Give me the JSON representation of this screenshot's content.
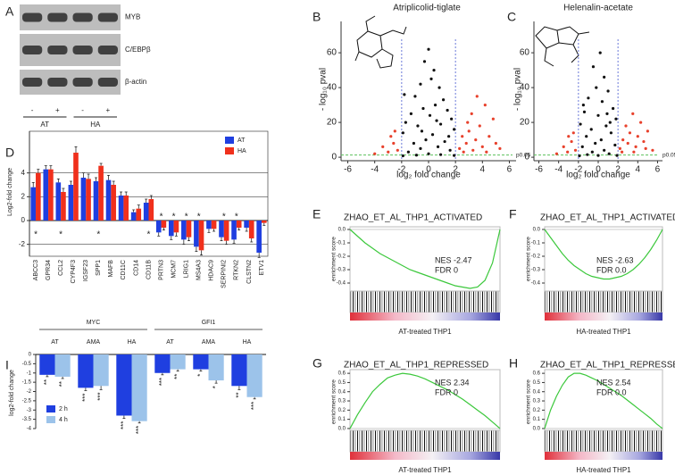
{
  "blot": {
    "panel": "A",
    "bands": [
      "MYB",
      "C/EBPβ",
      "β-actin"
    ],
    "lanes": [
      "-",
      "+",
      "-",
      "+"
    ],
    "groups": [
      "AT",
      "HA"
    ]
  },
  "chart_data": [
    {
      "type": "scatter",
      "panel": "B",
      "title": "Atriplicolid-tiglate",
      "x_label": "log₂ fold change",
      "y_label": "- log₁₀ pval",
      "xlim": [
        -6.5,
        6.5
      ],
      "ylim": [
        -2,
        78
      ],
      "xticks": [
        -6,
        -4,
        -2,
        0,
        2,
        4,
        6
      ],
      "yticks": [
        0,
        20,
        40,
        60
      ],
      "vlines": [
        -2,
        2
      ],
      "hline": 1.3,
      "hline_label": "p0.05",
      "series": [
        {
          "color": "#111111",
          "x": [
            0,
            -0.3,
            0.4,
            0.2,
            -0.6,
            0.8,
            -1,
            1.1,
            0.5,
            -0.4,
            1.4,
            -1.3,
            0.1,
            1.7,
            -1.7,
            0.9,
            -0.8,
            1.9,
            -1.9,
            0.3,
            -0.2,
            1.2,
            -1.1,
            0.7,
            -0.6,
            1.6,
            -1.5,
            0,
            0.9,
            -0.9,
            1.9,
            -1.9,
            -1.8,
            1.5,
            -0.5,
            0.6
          ],
          "values": [
            62,
            55,
            50,
            45,
            42,
            40,
            35,
            33,
            30,
            28,
            27,
            25,
            24,
            22,
            20,
            19,
            18,
            16,
            14,
            13,
            10,
            9,
            8,
            6,
            5,
            4,
            3,
            2,
            1.5,
            1.2,
            1,
            0.8,
            36,
            12,
            15,
            21
          ]
        },
        {
          "color": "#e8412c",
          "x": [
            2.3,
            2.5,
            2.8,
            3,
            3.2,
            3.5,
            3.8,
            4,
            4.2,
            4.5,
            4.8,
            5,
            2.6,
            3.3,
            4.3,
            5.3,
            2.9,
            3.6,
            -2.3,
            -2.6,
            -3,
            -3.4,
            -2.8,
            -4,
            -2.5
          ],
          "values": [
            5,
            12,
            8,
            15,
            25,
            10,
            18,
            6,
            30,
            12,
            22,
            8,
            3,
            4,
            3,
            5,
            20,
            35,
            4,
            8,
            3,
            6,
            12,
            2,
            15
          ]
        }
      ]
    },
    {
      "type": "scatter",
      "panel": "C",
      "title": "Helenalin-acetate",
      "x_label": "log₂ fold change",
      "y_label": "- log₁₀ pval",
      "xlim": [
        -6.5,
        6.5
      ],
      "ylim": [
        -2,
        78
      ],
      "xticks": [
        -6,
        -4,
        -2,
        0,
        2,
        4,
        6
      ],
      "yticks": [
        0,
        20,
        40,
        60
      ],
      "vlines": [
        -2,
        2
      ],
      "hline": 1.3,
      "hline_label": "p0.05",
      "series": [
        {
          "color": "#111111",
          "x": [
            0.2,
            -0.5,
            0.6,
            -0.2,
            1,
            -1,
            0.4,
            1.5,
            -1.4,
            0,
            1.8,
            -1.8,
            0.8,
            -0.7,
            1.3,
            -1.2,
            0.3,
            -0.3,
            1.7,
            -1.6,
            0.6,
            -0.6,
            1.1,
            -1.1,
            1.9,
            -1.9,
            0,
            -1.5,
            1.2,
            0.9
          ],
          "values": [
            60,
            52,
            46,
            40,
            38,
            34,
            32,
            28,
            26,
            24,
            22,
            19,
            18,
            16,
            14,
            12,
            10,
            8,
            7,
            6,
            4,
            3,
            2,
            1.5,
            1,
            0.8,
            1,
            30,
            20,
            25
          ]
        },
        {
          "color": "#e8412c",
          "x": [
            2.2,
            2.5,
            2.8,
            3,
            3.2,
            3.5,
            3.8,
            4,
            4.3,
            4.6,
            5,
            5.5,
            2.4,
            3.6,
            4.8,
            -2.3,
            -2.7,
            -3.1,
            -3.5,
            -2.5,
            -4.2,
            -3
          ],
          "values": [
            5,
            10,
            18,
            8,
            14,
            25,
            6,
            12,
            20,
            9,
            15,
            4,
            3,
            3,
            5,
            4,
            9,
            3,
            6,
            14,
            2,
            12
          ]
        }
      ]
    },
    {
      "type": "bar",
      "panel": "D",
      "y_label": "Log2-fold change",
      "ylim": [
        -3,
        7.5
      ],
      "yticks": [
        -2,
        0,
        2,
        4
      ],
      "grid": true,
      "legend": "upper right",
      "categories": [
        "ABCC3",
        "GPR34",
        "CCL2",
        "CYP4F3",
        "IGSF23",
        "SPP1",
        "MAFB",
        "CD11C",
        "CD14",
        "CD11B",
        "PRTN3",
        "MCM7",
        "LRIG1",
        "MS4A3",
        "HDAC9",
        "SERPINI2",
        "RTKN2",
        "CLSTN2",
        "ETV1"
      ],
      "markers": [
        "*",
        null,
        "*",
        null,
        null,
        "*",
        null,
        null,
        null,
        "*",
        "*",
        "*",
        "*",
        "*",
        null,
        "*",
        "*",
        null,
        null
      ],
      "series": [
        {
          "name": "AT",
          "color": "#1f3fe0",
          "values": [
            2.8,
            4.3,
            3.2,
            3.0,
            3.6,
            3.3,
            3.4,
            2.1,
            0.7,
            1.5,
            -1.0,
            -1.3,
            -1.6,
            -2.2,
            -0.7,
            -1.4,
            -1.6,
            -0.6,
            -2.7
          ],
          "errors": [
            0.4,
            0.3,
            0.3,
            0.3,
            0.4,
            0.3,
            0.4,
            0.3,
            0.2,
            0.3,
            0.3,
            0.3,
            0.4,
            0.4,
            0.3,
            0.3,
            0.3,
            0.3,
            0.4
          ]
        },
        {
          "name": "HA",
          "color": "#f0301c",
          "values": [
            4.0,
            4.3,
            2.4,
            5.7,
            3.5,
            4.6,
            3.0,
            2.1,
            1.0,
            1.8,
            -0.6,
            -1.0,
            -1.4,
            -2.5,
            -0.7,
            -1.7,
            -0.6,
            -1.5,
            -0.2
          ],
          "errors": [
            0.3,
            0.3,
            0.3,
            0.5,
            0.4,
            0.2,
            0.3,
            0.3,
            0.3,
            0.3,
            0.2,
            0.3,
            0.3,
            0.4,
            0.2,
            0.3,
            0.2,
            0.3,
            0.2
          ]
        }
      ]
    },
    {
      "type": "line",
      "panel": "E",
      "title": "ZHAO_ET_AL_THP1_ACTIVATED",
      "y_label": "enrichment score",
      "x_label": "AT-treated THP1",
      "annotations": [
        "NES -2.47",
        "FDR 0"
      ],
      "xlim": [
        0,
        100
      ],
      "ylim": [
        -0.46,
        0.02
      ],
      "yticks": [
        {
          "value": 0,
          "label": "0.0"
        },
        -0.1,
        -0.2,
        -0.3,
        -0.4
      ],
      "x": [
        0,
        5,
        10,
        15,
        20,
        25,
        30,
        35,
        40,
        45,
        50,
        55,
        60,
        65,
        70,
        75,
        80,
        85,
        90,
        95,
        100
      ],
      "series": [
        {
          "color": "#3cc83c",
          "values": [
            0,
            -0.05,
            -0.1,
            -0.14,
            -0.18,
            -0.21,
            -0.24,
            -0.27,
            -0.3,
            -0.32,
            -0.34,
            -0.36,
            -0.38,
            -0.4,
            -0.42,
            -0.43,
            -0.44,
            -0.43,
            -0.38,
            -0.25,
            0
          ]
        }
      ]
    },
    {
      "type": "line",
      "panel": "F",
      "title": "ZHAO_ET_AL_THP1_ACTIVATED",
      "y_label": "enrichment score",
      "x_label": "HA-treated THP1",
      "annotations": [
        "NES -2.63",
        "FDR 0.0"
      ],
      "xlim": [
        0,
        100
      ],
      "ylim": [
        -0.46,
        0.02
      ],
      "yticks": [
        {
          "value": 0,
          "label": "0.0"
        },
        -0.1,
        -0.2,
        -0.3,
        -0.4
      ],
      "x": [
        0,
        5,
        10,
        15,
        20,
        25,
        30,
        35,
        40,
        45,
        50,
        55,
        60,
        65,
        70,
        75,
        80,
        85,
        90,
        95,
        100
      ],
      "series": [
        {
          "color": "#3cc83c",
          "values": [
            0,
            -0.06,
            -0.12,
            -0.18,
            -0.23,
            -0.27,
            -0.3,
            -0.33,
            -0.35,
            -0.36,
            -0.37,
            -0.37,
            -0.36,
            -0.35,
            -0.33,
            -0.3,
            -0.26,
            -0.21,
            -0.15,
            -0.08,
            0
          ]
        }
      ]
    },
    {
      "type": "line",
      "panel": "G",
      "title": "ZHAO_ET_AL_THP1_REPRESSED",
      "y_label": "enrichment score",
      "x_label": "AT-treated THP1",
      "annotations": [
        "NES 2.34",
        "FDR 0"
      ],
      "xlim": [
        0,
        100
      ],
      "ylim": [
        -0.02,
        0.64
      ],
      "yticks": [
        {
          "value": 0,
          "label": "0.0"
        },
        0.1,
        0.2,
        0.3,
        0.4,
        0.5,
        0.6
      ],
      "x": [
        0,
        5,
        10,
        15,
        20,
        25,
        30,
        35,
        40,
        45,
        50,
        55,
        60,
        65,
        70,
        75,
        80,
        85,
        90,
        95,
        100
      ],
      "series": [
        {
          "color": "#3cc83c",
          "values": [
            0,
            0.15,
            0.28,
            0.4,
            0.48,
            0.55,
            0.58,
            0.6,
            0.59,
            0.57,
            0.54,
            0.5,
            0.46,
            0.42,
            0.37,
            0.32,
            0.26,
            0.2,
            0.14,
            0.07,
            0
          ]
        }
      ]
    },
    {
      "type": "line",
      "panel": "H",
      "title": "ZHAO_ET_AL_THP1_REPRESSED",
      "y_label": "enrichment score",
      "x_label": "HA-treated THP1",
      "annotations": [
        "NES 2.54",
        "FDR 0.0"
      ],
      "xlim": [
        0,
        100
      ],
      "ylim": [
        -0.02,
        0.64
      ],
      "yticks": [
        {
          "value": 0,
          "label": "0.0"
        },
        0.1,
        0.2,
        0.3,
        0.4,
        0.5,
        0.6
      ],
      "x": [
        0,
        5,
        10,
        15,
        20,
        25,
        30,
        35,
        40,
        45,
        50,
        55,
        60,
        65,
        70,
        75,
        80,
        85,
        90,
        95,
        100
      ],
      "series": [
        {
          "color": "#3cc83c",
          "values": [
            0,
            0.2,
            0.35,
            0.47,
            0.56,
            0.6,
            0.6,
            0.58,
            0.55,
            0.52,
            0.48,
            0.44,
            0.4,
            0.36,
            0.31,
            0.26,
            0.21,
            0.16,
            0.11,
            0.05,
            0
          ]
        }
      ]
    },
    {
      "type": "bar",
      "panel": "I",
      "y_label": "log2-fold change",
      "ylim": [
        -4,
        0
      ],
      "yticks": [
        0,
        -0.5,
        -1,
        -1.5,
        -2,
        -2.5,
        -3,
        -3.5,
        -4
      ],
      "legend": "lower left",
      "group_labels": [
        "MYC",
        "GFI1"
      ],
      "categories": [
        "AT",
        "AMA",
        "HA",
        "AT",
        "AMA",
        "HA"
      ],
      "series": [
        {
          "name": "2 h",
          "color": "#1f3fe0",
          "values": [
            -1.1,
            -1.8,
            -3.3,
            -1.0,
            -0.8,
            -1.7
          ],
          "errors": [
            0.1,
            0.15,
            0.15,
            0.1,
            0.1,
            0.2
          ],
          "significance": [
            "**",
            "***",
            "***",
            "***",
            "*",
            "**"
          ]
        },
        {
          "name": "4 h",
          "color": "#9cc3ea",
          "values": [
            -1.2,
            -1.7,
            -3.6,
            -0.8,
            -1.4,
            -2.3
          ],
          "errors": [
            0.1,
            0.2,
            0.1,
            0.1,
            0.15,
            0.1
          ],
          "significance": [
            "**",
            "***",
            "***",
            "**",
            "*",
            "***"
          ]
        }
      ]
    }
  ]
}
